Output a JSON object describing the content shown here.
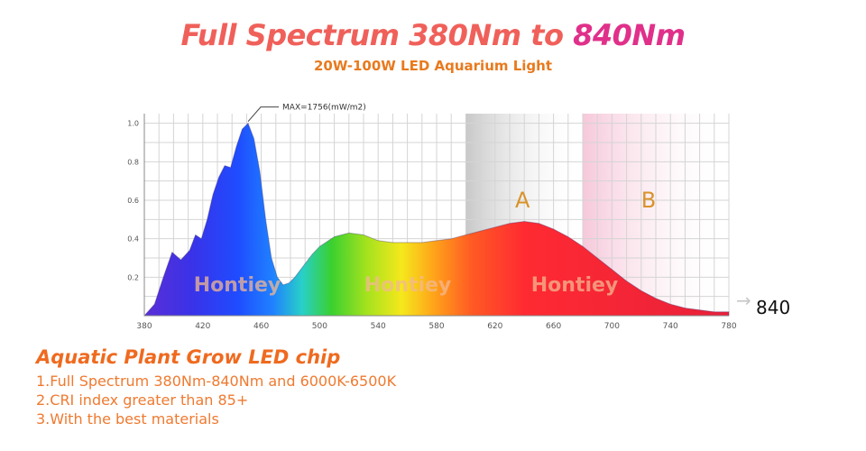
{
  "title_part1": "Full Spectrum 380Nm to ",
  "title_part2": "840Nm",
  "subtitle": "20W-100W LED Aquarium Light",
  "chart_data": {
    "type": "area",
    "title": "",
    "xlabel": "",
    "ylabel": "",
    "xlim": [
      380,
      780
    ],
    "ylim": [
      0,
      1.05
    ],
    "x_ticks": [
      "380",
      "420",
      "460",
      "500",
      "540",
      "580",
      "620",
      "660",
      "700",
      "740",
      "780"
    ],
    "y_ticks": [
      "1.0",
      "0.8",
      "0.6",
      "0.4",
      "0.2"
    ],
    "grid": true,
    "series": [
      {
        "x": [
          380,
          387,
          393,
          399,
          405,
          411,
          415,
          419,
          423,
          427,
          431,
          435,
          439,
          443,
          447,
          451,
          455,
          459,
          463,
          467,
          471,
          475,
          479,
          483,
          487,
          491,
          495,
          500,
          510,
          520,
          530,
          540,
          550,
          560,
          570,
          580,
          590,
          600,
          610,
          620,
          630,
          640,
          650,
          660,
          670,
          680,
          690,
          700,
          710,
          720,
          730,
          740,
          750,
          760,
          770,
          780
        ],
        "values": [
          0.0,
          0.06,
          0.2,
          0.33,
          0.29,
          0.34,
          0.42,
          0.4,
          0.5,
          0.63,
          0.72,
          0.78,
          0.77,
          0.88,
          0.97,
          1.0,
          0.92,
          0.75,
          0.5,
          0.3,
          0.2,
          0.16,
          0.17,
          0.2,
          0.24,
          0.28,
          0.32,
          0.36,
          0.41,
          0.43,
          0.42,
          0.39,
          0.38,
          0.38,
          0.38,
          0.39,
          0.4,
          0.42,
          0.44,
          0.46,
          0.48,
          0.49,
          0.48,
          0.45,
          0.41,
          0.36,
          0.3,
          0.24,
          0.18,
          0.13,
          0.09,
          0.06,
          0.04,
          0.03,
          0.02,
          0.02
        ]
      }
    ],
    "peak_label": "MAX=1756(mW/m2)",
    "regions": [
      {
        "label": "A",
        "from": 600,
        "to": 680,
        "color": "#b8b8b8"
      },
      {
        "label": "B",
        "from": 680,
        "to": 780,
        "color": "#f2b8d0"
      }
    ],
    "watermark": "Hontiey",
    "end_label": "840",
    "arrow_glyph": "→",
    "label_color": "#d9932a"
  },
  "description": {
    "heading": "Aquatic Plant Grow LED chip",
    "lines": [
      "1.Full Spectrum 380Nm-840Nm and 6000K-6500K",
      "2.CRI index greater than 85+",
      "3.With the best materials"
    ]
  }
}
